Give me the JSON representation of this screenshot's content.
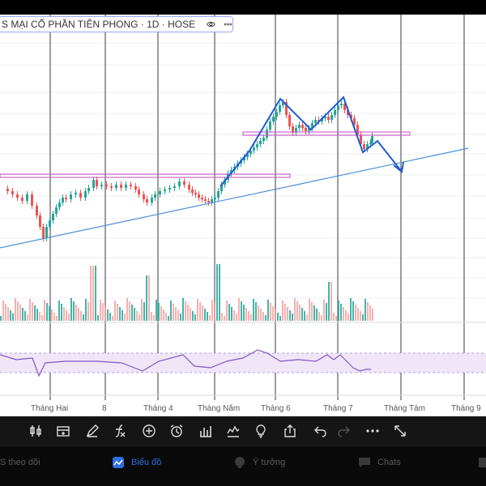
{
  "symbol": {
    "text": "S MẠI CỔ PHẦN TIÊN PHONG · 1D · HOSE",
    "icons": [
      "eye-icon",
      "more-icon"
    ]
  },
  "time_axis": {
    "labels": [
      "Tháng Hai",
      "8",
      "Tháng 4",
      "Tháng Năm",
      "Tháng 6",
      "Tháng 7",
      "Tháng Tám",
      "Tháng 9"
    ]
  },
  "toolbar": {
    "icons": [
      "candlestick-icon",
      "add-bar-icon",
      "pencil-icon",
      "function-icon",
      "plus-circle-icon",
      "alarm-icon",
      "bar-chart-icon",
      "heatmap-icon",
      "lightbulb-icon",
      "share-icon",
      "undo-icon",
      "redo-icon",
      "more-icon",
      "fullscreen-icon"
    ]
  },
  "nav": {
    "items": [
      {
        "label": "S theo dõi",
        "icon": "watchlist-icon",
        "active": false
      },
      {
        "label": "Biểu đồ",
        "icon": "chart-icon",
        "active": true
      },
      {
        "label": "Ý tưởng",
        "icon": "idea-icon",
        "active": false
      },
      {
        "label": "Chats",
        "icon": "chat-icon",
        "active": false
      }
    ]
  },
  "colors": {
    "up": "#26a69a",
    "down": "#ef5350",
    "support_line": "#cc66cc",
    "trend_line": "#4a90d9",
    "drawing": "#1e5bd8",
    "rsi": "#7e57c2",
    "rsi_band": "#f1e6f8",
    "active_nav": "#2f6fe4"
  }
}
